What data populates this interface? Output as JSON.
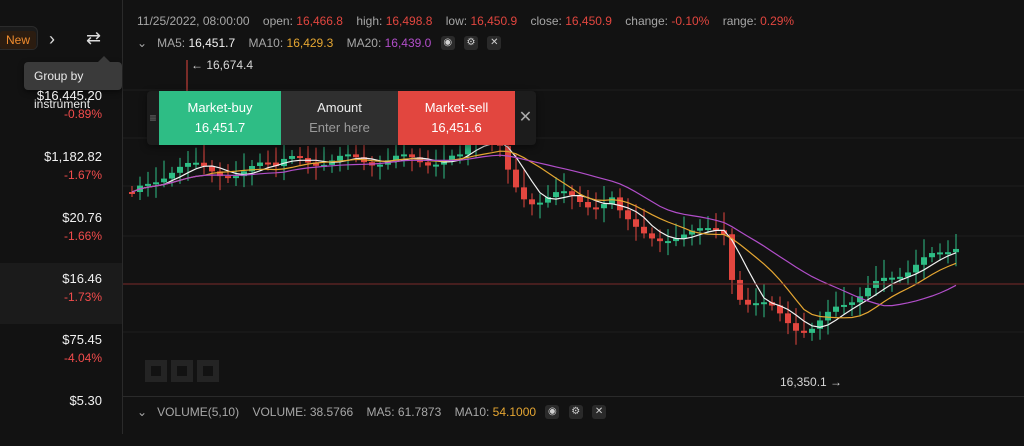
{
  "sidebar": {
    "new_badge": "New",
    "tooltip": "Group by instrument",
    "rows": [
      {
        "price": "$16,445.20",
        "change": "-0.89%"
      },
      {
        "price": "$1,182.82",
        "change": "-1.67%"
      },
      {
        "price": "$20.76",
        "change": "-1.66%"
      },
      {
        "price": "$16.46",
        "change": "-1.73%"
      },
      {
        "price": "$75.45",
        "change": "-4.04%"
      },
      {
        "price": "$5.30",
        "change": ""
      }
    ]
  },
  "chart": {
    "info": {
      "datetime": "11/25/2022, 08:00:00",
      "open_label": "open:",
      "open": "16,466.8",
      "high_label": "high:",
      "high": "16,498.8",
      "low_label": "low:",
      "low": "16,450.9",
      "close_label": "close:",
      "close": "16,450.9",
      "change_label": "change:",
      "change": "-0.10%",
      "range_label": "range:",
      "range": "0.29%"
    },
    "ma": {
      "ma5_label": "MA5:",
      "ma5": "16,451.7",
      "ma10_label": "MA10:",
      "ma10": "16,429.3",
      "ma20_label": "MA20:",
      "ma20": "16,439.0"
    },
    "trade": {
      "buy_label": "Market-buy",
      "buy_price": "16,451.7",
      "amount_label": "Amount",
      "amount_placeholder": "Enter here",
      "sell_label": "Market-sell",
      "sell_price": "16,451.6"
    },
    "high_marker": "← 16,674.4",
    "low_marker": "16,350.1 →",
    "volume": {
      "title": "VOLUME(5,10)",
      "volume_label": "VOLUME:",
      "volume": "38.5766",
      "ma5_label": "MA5:",
      "ma5": "61.7873",
      "ma10_label": "MA10:",
      "ma10": "54.1000"
    },
    "colors": {
      "up": "#2ebd85",
      "down": "#e2463f",
      "ma5": "#f2f2f2",
      "ma10": "#e5a632",
      "ma20": "#b14ec9"
    }
  }
}
